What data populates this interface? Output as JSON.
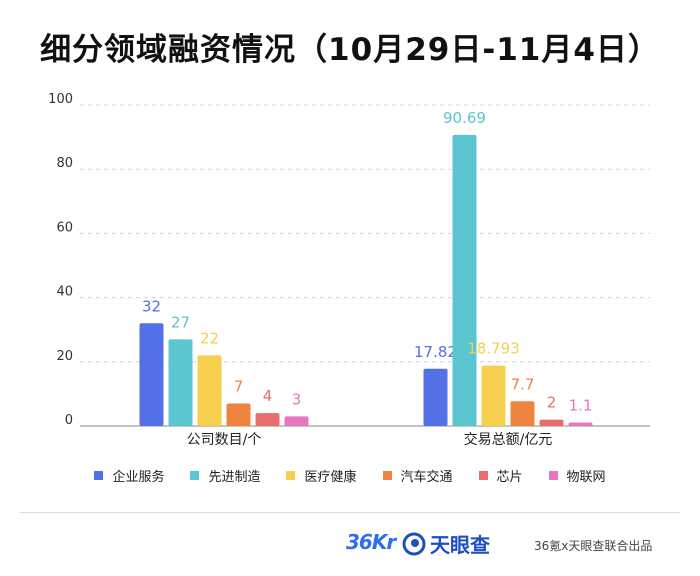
{
  "title": "细分领域融资情况（10月29日-11月4日）",
  "chart_data": {
    "type": "bar",
    "categories": [
      "公司数目/个",
      "交易总额/亿元"
    ],
    "ylim": [
      0,
      100
    ],
    "yticks": [
      0,
      20,
      40,
      60,
      80,
      100
    ],
    "grid": true,
    "legend_position": "bottom",
    "series": [
      {
        "name": "企业服务",
        "color": "#5470e6",
        "values": [
          32,
          17.82
        ],
        "labels": [
          "32",
          "17.82"
        ]
      },
      {
        "name": "先进制造",
        "color": "#5bc5d2",
        "values": [
          27,
          90.69
        ],
        "labels": [
          "27",
          "90.69"
        ]
      },
      {
        "name": "医疗健康",
        "color": "#f7d04f",
        "values": [
          22,
          18.793
        ],
        "labels": [
          "22",
          "18.793"
        ]
      },
      {
        "name": "汽车交通",
        "color": "#ef8440",
        "values": [
          7,
          7.7
        ],
        "labels": [
          "7",
          "7.7"
        ]
      },
      {
        "name": "芯片",
        "color": "#e86d6d",
        "values": [
          4,
          2
        ],
        "labels": [
          "4",
          "2"
        ]
      },
      {
        "name": "物联网",
        "color": "#e678c0",
        "values": [
          3,
          1.1
        ],
        "labels": [
          "3",
          "1.1"
        ]
      }
    ]
  },
  "footer": {
    "logo_36kr": "36Kr",
    "logo_tianyancha": "天眼查",
    "credit": "36氪x天眼查联合出品"
  }
}
